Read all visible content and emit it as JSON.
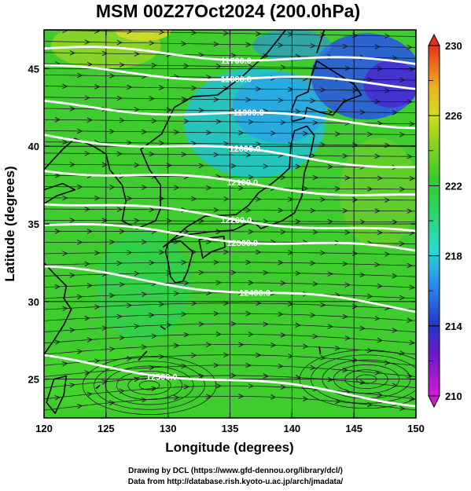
{
  "chart_data": {
    "type": "heatmap",
    "title": "MSM 00Z27Oct2024 (200.0hPa)",
    "xlabel": "Longitude (degrees)",
    "ylabel": "Latitude  (degrees)",
    "xlim": [
      120,
      150
    ],
    "ylim": [
      22.5,
      47.5
    ],
    "xticks": [
      "120",
      "125",
      "130",
      "135",
      "140",
      "145",
      "150"
    ],
    "yticks": [
      "25",
      "30",
      "35",
      "40",
      "45"
    ],
    "grid": true,
    "colorbar": {
      "min": 210,
      "max": 230,
      "ticks": [
        "210",
        "214",
        "218",
        "222",
        "226",
        "230"
      ]
    },
    "contours": [
      {
        "label": "11700.0",
        "lat_west": 46.3,
        "lat_east": 45.3
      },
      {
        "label": "11800.0",
        "lat_west": 45.0,
        "lat_east": 43.9
      },
      {
        "label": "11900.0",
        "lat_west": 42.7,
        "lat_east": 41.4
      },
      {
        "label": "12000.0",
        "lat_west": 40.7,
        "lat_east": 38.7
      },
      {
        "label": "12100.0",
        "lat_west": 38.6,
        "lat_east": 36.7
      },
      {
        "label": "12200.0",
        "lat_west": 36.5,
        "lat_east": 34.3
      },
      {
        "label": "12300.0",
        "lat_west": 35.0,
        "lat_east": 33.2
      },
      {
        "label": "12400.0",
        "lat_west": 32.1,
        "lat_east": 29.5
      },
      {
        "label": "12500.0",
        "lat_west": 26.3,
        "lat_east": 23.5
      }
    ]
  },
  "credits": {
    "line1": "Drawing by DCL (https://www.gfd-dennou.org/library/dcl/)",
    "line2": "Data from http://database.rish.kyoto-u.ac.jp/arch/jmadata/"
  }
}
